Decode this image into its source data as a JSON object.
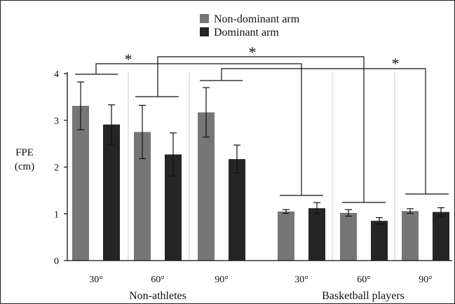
{
  "chart_data": {
    "type": "bar",
    "ylabel_line1": "FPE",
    "ylabel_line2": "(cm)",
    "ylim": [
      0,
      4
    ],
    "yticks": [
      "0",
      "1",
      "2",
      "3",
      "4"
    ],
    "legend_position": "top-center",
    "groups": [
      {
        "label": "Non-athletes",
        "angles": [
          "30°",
          "60°",
          "90°"
        ]
      },
      {
        "label": "Basketball players",
        "angles": [
          "30°",
          "60°",
          "90°"
        ]
      }
    ],
    "categories": [
      "30°",
      "60°",
      "90°",
      "30°",
      "60°",
      "90°"
    ],
    "series": [
      {
        "name": "Non-dominant arm",
        "color": "#767676",
        "values": [
          3.31,
          2.75,
          3.17,
          1.05,
          1.02,
          1.06
        ],
        "errors": [
          0.51,
          0.57,
          0.53,
          0.04,
          0.07,
          0.05
        ]
      },
      {
        "name": "Dominant arm",
        "color": "#252525",
        "values": [
          2.91,
          2.27,
          2.17,
          1.12,
          0.85,
          1.04
        ],
        "errors": [
          0.42,
          0.46,
          0.3,
          0.12,
          0.07,
          0.09
        ]
      }
    ],
    "significance_marks": [
      "*",
      "*",
      "*"
    ]
  }
}
